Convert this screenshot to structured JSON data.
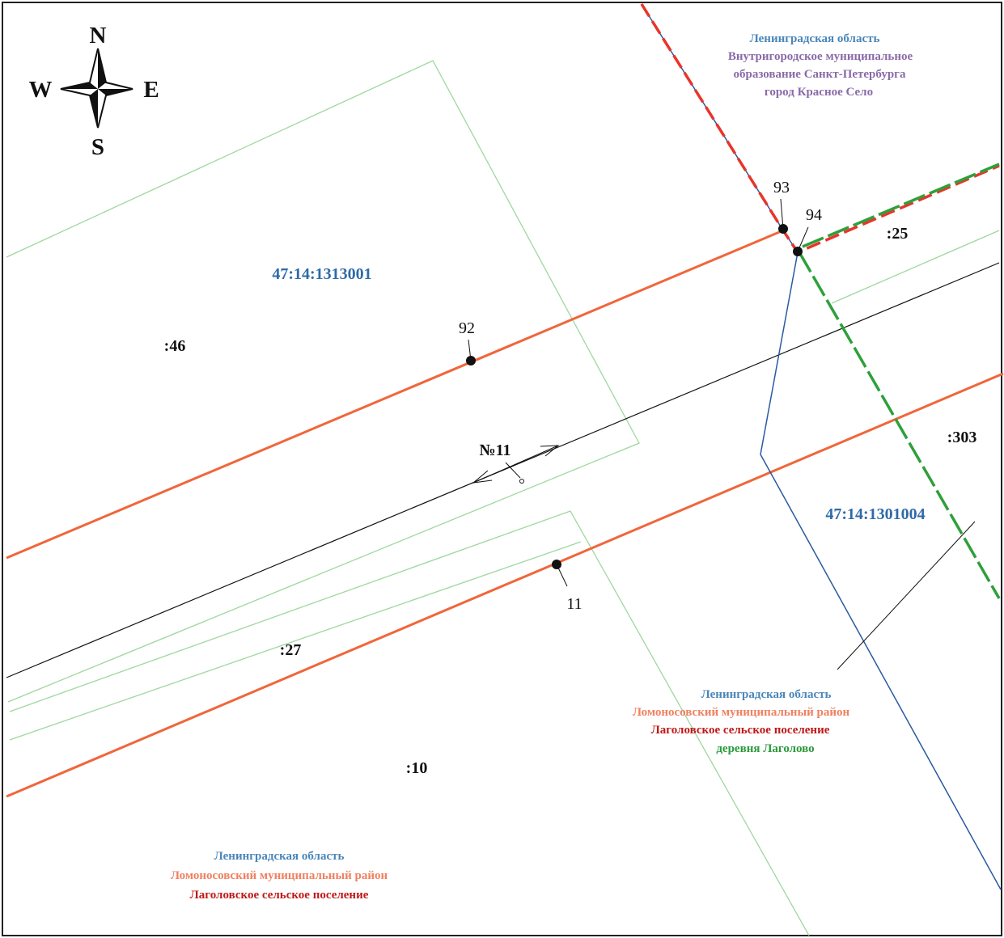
{
  "compass": {
    "north": "N",
    "south": "S",
    "west": "W",
    "east": "E"
  },
  "cadastral_blocks": [
    "47:14:1313001",
    "47:14:1301004"
  ],
  "parcels": [
    ":46",
    ":25",
    ":303",
    ":27",
    ":10"
  ],
  "route_label": "№11",
  "points": [
    "92",
    "93",
    "94",
    "11"
  ],
  "region_top_right": {
    "line1": "Ленинградская область",
    "line2": "Внутригородское муниципальное",
    "line3": "образование Санкт-Петербурга",
    "line4": "город Красное Село"
  },
  "region_right": {
    "line1": "Ленинградская область",
    "line2": "Ломоносовский муниципальный район",
    "line3": "Лаголовское сельское поселение",
    "line4": "деревня Лаголово"
  },
  "region_bottom_left": {
    "line1": "Ленинградская область",
    "line2": "Ломоносовский муниципальный район",
    "line3": "Лаголовское сельское поселение"
  },
  "colors": {
    "block_label": "#2f6aa8",
    "oblast": "#4a86b8",
    "municipal_city": "#8a6aa8",
    "district": "#f08060",
    "settlement": "#c01818",
    "village": "#2a9a3a",
    "orange_line": "#f0663a",
    "green_thin": "#9fd79f",
    "blue_line": "#2a5aa0",
    "red_dash": "#e8352a",
    "green_dash": "#2ea03a"
  }
}
